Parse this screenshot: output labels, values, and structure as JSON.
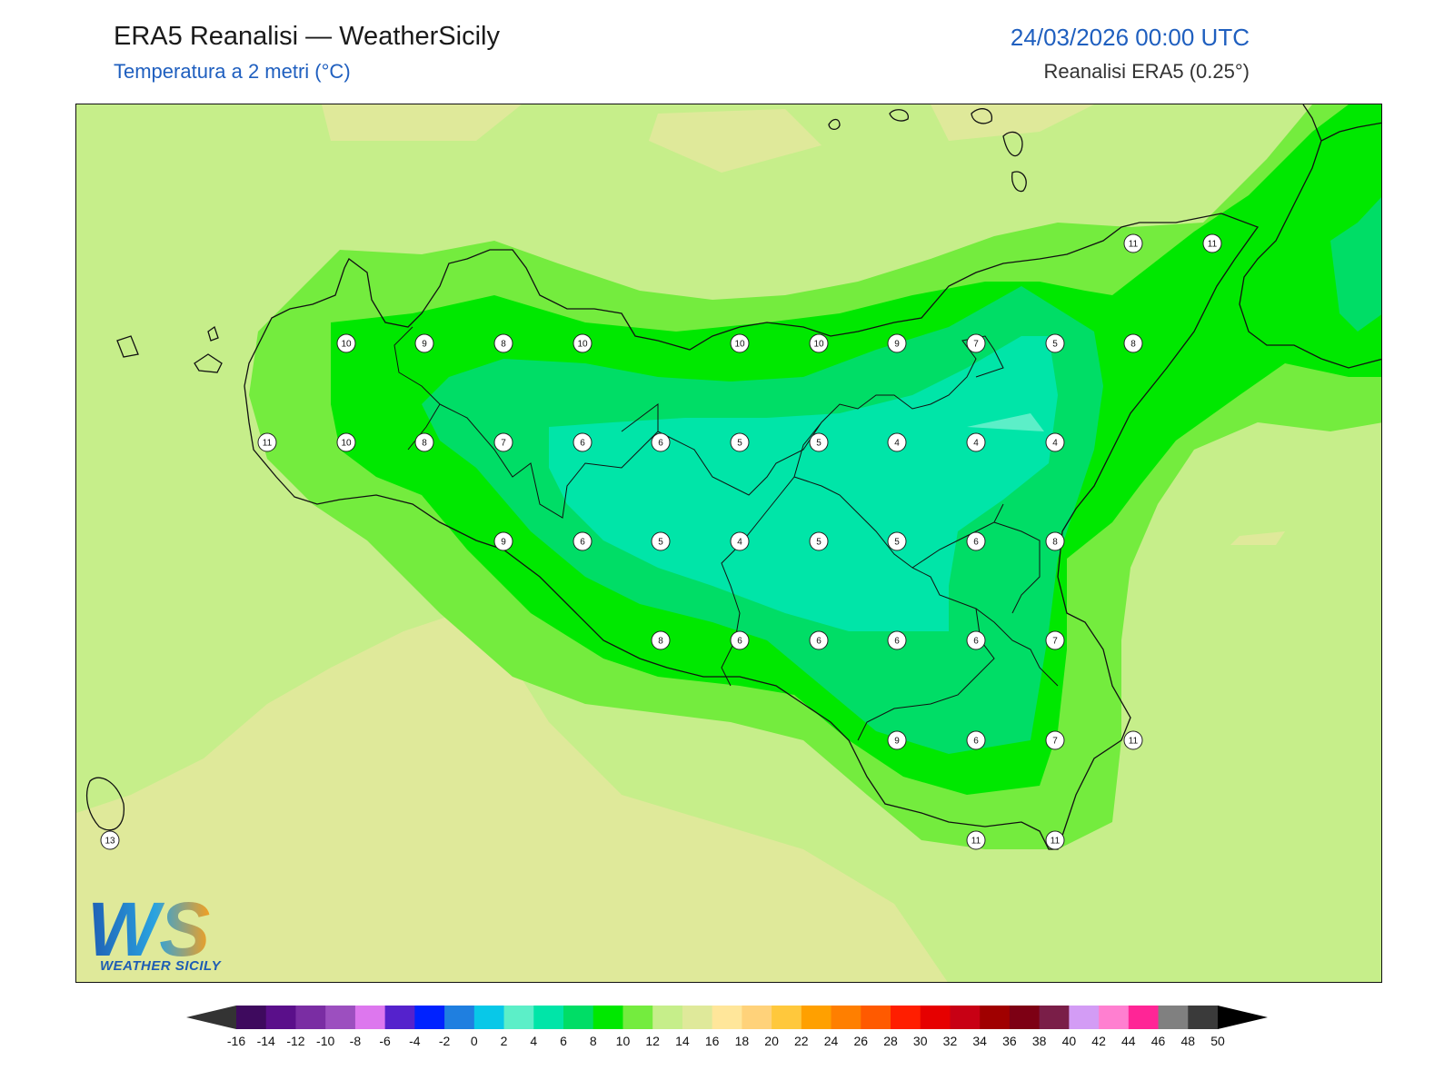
{
  "header": {
    "title": "ERA5 Reanalisi — WeatherSicily",
    "subtitle": "Temperatura a 2 metri (°C)",
    "datetime": "24/03/2026 00:00 UTC",
    "source": "Reanalisi ERA5 (0.25°)"
  },
  "logo": {
    "initials": "WS",
    "name": "WEATHER SICILY"
  },
  "colors": {
    "sea_warm": "#dfe99a",
    "band_14": "#c6ee8a",
    "band_12": "#74ec3e",
    "band_10": "#00e800",
    "band_8": "#00dd66",
    "band_6": "#00e5a8",
    "band_4": "#5cefc8",
    "coast": "#111111"
  },
  "colorbar": {
    "ticks": [
      "-16",
      "-14",
      "-12",
      "-10",
      "-8",
      "-6",
      "-4",
      "-2",
      "0",
      "2",
      "4",
      "6",
      "8",
      "10",
      "12",
      "14",
      "16",
      "18",
      "20",
      "22",
      "24",
      "26",
      "28",
      "30",
      "32",
      "34",
      "36",
      "38",
      "40",
      "42",
      "44",
      "46",
      "48",
      "50"
    ],
    "colors": [
      "#3e0a5e",
      "#5a0f8a",
      "#7a2da3",
      "#9c4fbf",
      "#dd77ee",
      "#5522cc",
      "#0022ff",
      "#1f7fe0",
      "#08c8e8",
      "#5cefc8",
      "#00e5a8",
      "#00dd66",
      "#00e800",
      "#74ec3e",
      "#c6ee8a",
      "#dfe99a",
      "#ffe69a",
      "#ffd27a",
      "#ffc83c",
      "#ffa000",
      "#ff7f00",
      "#ff5a00",
      "#ff1e00",
      "#e60000",
      "#c80014",
      "#a00000",
      "#7d0014",
      "#7a1e48",
      "#d39cf5",
      "#ff7fd0",
      "#ff2596",
      "#808080",
      "#3a3a3a"
    ],
    "left_cap": "#333333",
    "right_cap": "#000000"
  },
  "points": [
    {
      "v": "10"
    },
    {
      "v": "9"
    },
    {
      "v": "8"
    },
    {
      "v": "10"
    },
    {
      "v": "10"
    },
    {
      "v": "10"
    },
    {
      "v": "9"
    },
    {
      "v": "7"
    },
    {
      "v": "5"
    },
    {
      "v": "8"
    },
    {
      "v": "11"
    },
    {
      "v": "10"
    },
    {
      "v": "8"
    },
    {
      "v": "7"
    },
    {
      "v": "6"
    },
    {
      "v": "6"
    },
    {
      "v": "5"
    },
    {
      "v": "5"
    },
    {
      "v": "4"
    },
    {
      "v": "4"
    },
    {
      "v": "4"
    },
    {
      "v": "9"
    },
    {
      "v": "6"
    },
    {
      "v": "5"
    },
    {
      "v": "4"
    },
    {
      "v": "5"
    },
    {
      "v": "5"
    },
    {
      "v": "6"
    },
    {
      "v": "8"
    },
    {
      "v": "8"
    },
    {
      "v": "6"
    },
    {
      "v": "6"
    },
    {
      "v": "6"
    },
    {
      "v": "6"
    },
    {
      "v": "7"
    },
    {
      "v": "9"
    },
    {
      "v": "6"
    },
    {
      "v": "7"
    },
    {
      "v": "11"
    },
    {
      "v": "11"
    },
    {
      "v": "11"
    },
    {
      "v": "11"
    },
    {
      "v": "11"
    },
    {
      "v": "13"
    }
  ]
}
